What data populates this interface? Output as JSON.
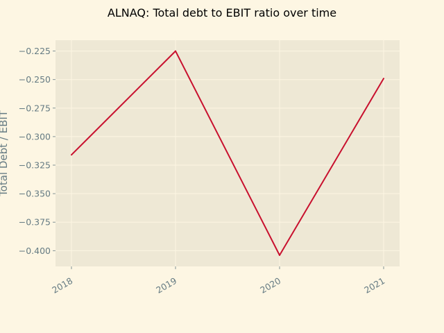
{
  "chart_data": {
    "type": "line",
    "title": "ALNAQ: Total debt to EBIT ratio over time",
    "xlabel": "",
    "ylabel": "Total Debt / EBIT",
    "x": [
      "2018",
      "2019",
      "2020",
      "2021"
    ],
    "series": [
      {
        "values": [
          -0.316,
          -0.225,
          -0.404,
          -0.249
        ]
      }
    ],
    "yticks": [
      -0.225,
      -0.25,
      -0.275,
      -0.3,
      -0.325,
      -0.35,
      -0.375,
      -0.4
    ],
    "ytick_labels": [
      "−0.225",
      "−0.250",
      "−0.275",
      "−0.300",
      "−0.325",
      "−0.350",
      "−0.375",
      "−0.400"
    ],
    "ylim": [
      -0.4138,
      -0.2155
    ],
    "grid": true,
    "legend": "none",
    "colors": {
      "background": "#fdf6e3",
      "plot_area": "#eee8d5",
      "grid": "#fdf6e3",
      "line": "#c8102e",
      "tick_text": "#657b83"
    }
  }
}
